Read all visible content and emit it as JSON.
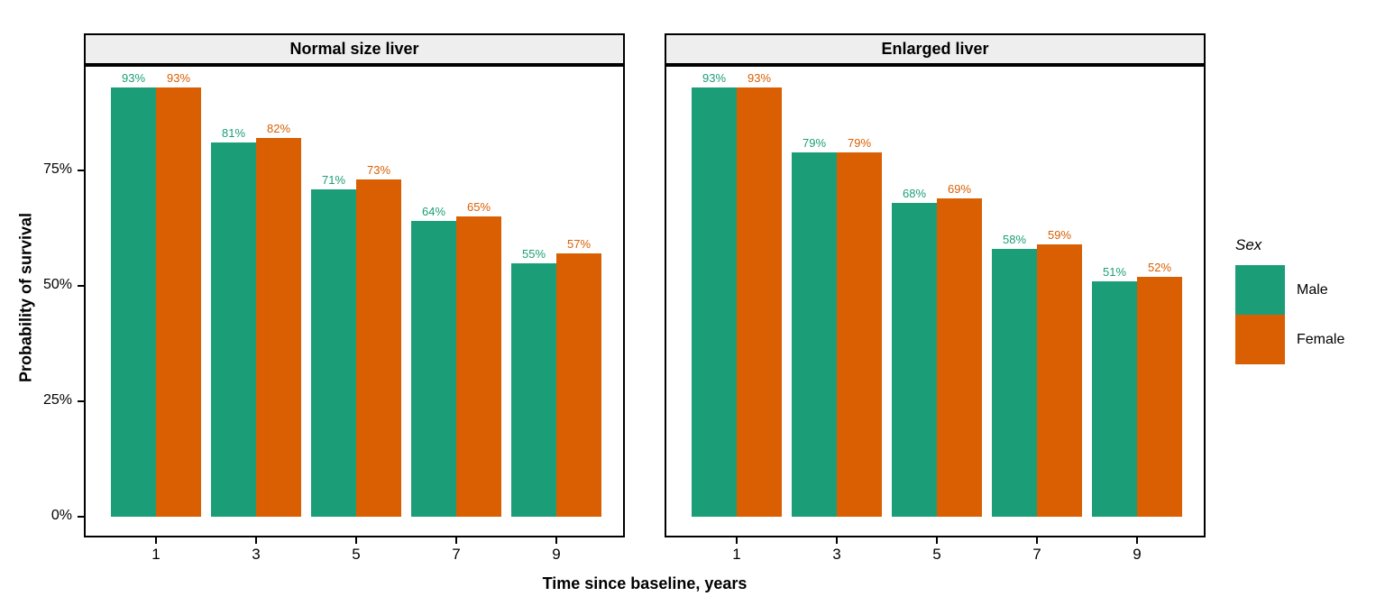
{
  "chart_data": {
    "type": "bar",
    "title": "",
    "xlabel": "Time since baseline, years",
    "ylabel": "Probability of survival",
    "value_suffix": "%",
    "grid": "off",
    "ylim": [
      0,
      98
    ],
    "y_ticks": [
      {
        "value": 0,
        "label": "0%"
      },
      {
        "value": 25,
        "label": "25%"
      },
      {
        "value": 50,
        "label": "50%"
      },
      {
        "value": 75,
        "label": "75%"
      }
    ],
    "categories": [
      "1",
      "3",
      "5",
      "7",
      "9"
    ],
    "facets": [
      {
        "label": "Normal size liver",
        "series": [
          {
            "name": "Male",
            "color": "#1b9e77",
            "values": [
              93,
              81,
              71,
              64,
              55
            ]
          },
          {
            "name": "Female",
            "color": "#d95f02",
            "values": [
              93,
              82,
              73,
              65,
              57
            ]
          }
        ]
      },
      {
        "label": "Enlarged liver",
        "series": [
          {
            "name": "Male",
            "color": "#1b9e77",
            "values": [
              93,
              79,
              68,
              58,
              51
            ]
          },
          {
            "name": "Female",
            "color": "#d95f02",
            "values": [
              93,
              79,
              69,
              59,
              52
            ]
          }
        ]
      }
    ],
    "legend": {
      "title": "Sex",
      "position": "right",
      "entries": [
        {
          "label": "Male",
          "color": "#1b9e77"
        },
        {
          "label": "Female",
          "color": "#d95f02"
        }
      ]
    },
    "styles": {
      "male_color": "#1b9e77",
      "female_color": "#d95f02",
      "strip_background": "#eeeeee",
      "panel_border": "#000000",
      "text_color": "#000000"
    }
  }
}
